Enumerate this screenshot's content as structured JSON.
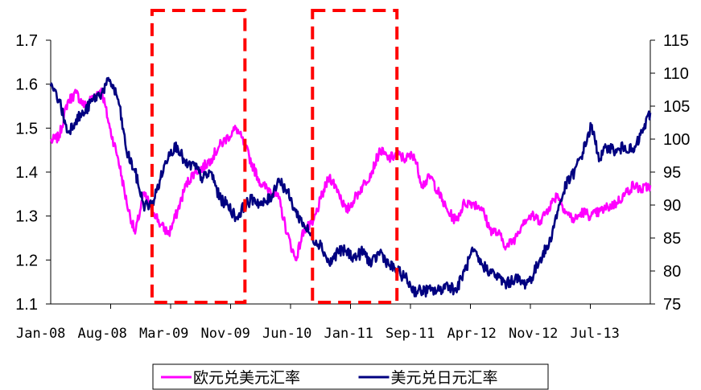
{
  "chart_data": {
    "type": "line",
    "title": "",
    "xlabel": "",
    "ylabel_left": "",
    "ylabel_right": "",
    "y_left": {
      "min": 1.1,
      "max": 1.7,
      "ticks": [
        "1.1",
        "1.2",
        "1.3",
        "1.4",
        "1.5",
        "1.6",
        "1.7"
      ]
    },
    "y_right": {
      "min": 75,
      "max": 115,
      "ticks": [
        "75",
        "80",
        "85",
        "90",
        "95",
        "100",
        "105",
        "110",
        "115"
      ]
    },
    "x_range": [
      "2008-01",
      "2013-12"
    ],
    "categories": [
      "Jan-08",
      "Aug-08",
      "Mar-09",
      "Nov-09",
      "Jun-10",
      "Jan-11",
      "Sep-11",
      "Apr-12",
      "Nov-12",
      "Jul-13"
    ],
    "grid": false,
    "legend": {
      "position": "bottom-center"
    },
    "series": [
      {
        "name": "欧元兑美元汇率",
        "axis": "left",
        "color": "#ff00ff",
        "points": [
          [
            "2008-01",
            1.47
          ],
          [
            "2008-02",
            1.48
          ],
          [
            "2008-03",
            1.56
          ],
          [
            "2008-04",
            1.58
          ],
          [
            "2008-05",
            1.55
          ],
          [
            "2008-06",
            1.57
          ],
          [
            "2008-07",
            1.59
          ],
          [
            "2008-08",
            1.5
          ],
          [
            "2008-09",
            1.43
          ],
          [
            "2008-10",
            1.33
          ],
          [
            "2008-11",
            1.26
          ],
          [
            "2008-12",
            1.35
          ],
          [
            "2009-01",
            1.32
          ],
          [
            "2009-02",
            1.28
          ],
          [
            "2009-03",
            1.26
          ],
          [
            "2009-04",
            1.31
          ],
          [
            "2009-05",
            1.37
          ],
          [
            "2009-06",
            1.4
          ],
          [
            "2009-07",
            1.41
          ],
          [
            "2009-08",
            1.43
          ],
          [
            "2009-09",
            1.46
          ],
          [
            "2009-10",
            1.48
          ],
          [
            "2009-11",
            1.5
          ],
          [
            "2009-12",
            1.46
          ],
          [
            "2010-01",
            1.41
          ],
          [
            "2010-02",
            1.37
          ],
          [
            "2010-03",
            1.36
          ],
          [
            "2010-04",
            1.34
          ],
          [
            "2010-05",
            1.26
          ],
          [
            "2010-06",
            1.2
          ],
          [
            "2010-07",
            1.27
          ],
          [
            "2010-08",
            1.28
          ],
          [
            "2010-09",
            1.34
          ],
          [
            "2010-10",
            1.39
          ],
          [
            "2010-11",
            1.36
          ],
          [
            "2010-12",
            1.31
          ],
          [
            "2011-01",
            1.34
          ],
          [
            "2011-02",
            1.37
          ],
          [
            "2011-03",
            1.4
          ],
          [
            "2011-04",
            1.45
          ],
          [
            "2011-05",
            1.43
          ],
          [
            "2011-06",
            1.44
          ],
          [
            "2011-07",
            1.43
          ],
          [
            "2011-08",
            1.44
          ],
          [
            "2011-09",
            1.37
          ],
          [
            "2011-10",
            1.39
          ],
          [
            "2011-11",
            1.35
          ],
          [
            "2011-12",
            1.31
          ],
          [
            "2012-01",
            1.29
          ],
          [
            "2012-02",
            1.33
          ],
          [
            "2012-03",
            1.33
          ],
          [
            "2012-04",
            1.32
          ],
          [
            "2012-05",
            1.27
          ],
          [
            "2012-06",
            1.26
          ],
          [
            "2012-07",
            1.23
          ],
          [
            "2012-08",
            1.25
          ],
          [
            "2012-09",
            1.29
          ],
          [
            "2012-10",
            1.3
          ],
          [
            "2012-11",
            1.29
          ],
          [
            "2012-12",
            1.32
          ],
          [
            "2013-01",
            1.35
          ],
          [
            "2013-02",
            1.31
          ],
          [
            "2013-03",
            1.29
          ],
          [
            "2013-04",
            1.31
          ],
          [
            "2013-05",
            1.3
          ],
          [
            "2013-06",
            1.31
          ],
          [
            "2013-07",
            1.32
          ],
          [
            "2013-08",
            1.33
          ],
          [
            "2013-09",
            1.35
          ],
          [
            "2013-10",
            1.37
          ],
          [
            "2013-11",
            1.36
          ],
          [
            "2013-12",
            1.37
          ]
        ]
      },
      {
        "name": "美元兑日元汇率",
        "axis": "right",
        "color": "#000080",
        "points": [
          [
            "2008-01",
            108
          ],
          [
            "2008-02",
            106
          ],
          [
            "2008-03",
            101
          ],
          [
            "2008-04",
            103
          ],
          [
            "2008-05",
            104
          ],
          [
            "2008-06",
            106
          ],
          [
            "2008-07",
            107
          ],
          [
            "2008-08",
            109
          ],
          [
            "2008-09",
            106
          ],
          [
            "2008-10",
            98
          ],
          [
            "2008-11",
            95
          ],
          [
            "2008-12",
            90
          ],
          [
            "2009-01",
            90
          ],
          [
            "2009-02",
            94
          ],
          [
            "2009-03",
            98
          ],
          [
            "2009-04",
            99
          ],
          [
            "2009-05",
            96
          ],
          [
            "2009-06",
            96
          ],
          [
            "2009-07",
            94
          ],
          [
            "2009-08",
            95
          ],
          [
            "2009-09",
            91
          ],
          [
            "2009-10",
            90
          ],
          [
            "2009-11",
            88
          ],
          [
            "2009-12",
            90
          ],
          [
            "2010-01",
            91
          ],
          [
            "2010-02",
            90
          ],
          [
            "2010-03",
            91
          ],
          [
            "2010-04",
            94
          ],
          [
            "2010-05",
            92
          ],
          [
            "2010-06",
            89
          ],
          [
            "2010-07",
            87
          ],
          [
            "2010-08",
            85
          ],
          [
            "2010-09",
            84
          ],
          [
            "2010-10",
            81
          ],
          [
            "2010-11",
            83
          ],
          [
            "2010-12",
            83
          ],
          [
            "2011-01",
            82
          ],
          [
            "2011-02",
            83
          ],
          [
            "2011-03",
            81
          ],
          [
            "2011-04",
            83
          ],
          [
            "2011-05",
            81
          ],
          [
            "2011-06",
            80
          ],
          [
            "2011-07",
            79
          ],
          [
            "2011-08",
            77
          ],
          [
            "2011-09",
            77
          ],
          [
            "2011-10",
            77
          ],
          [
            "2011-11",
            77
          ],
          [
            "2011-12",
            78
          ],
          [
            "2012-01",
            77
          ],
          [
            "2012-02",
            80
          ],
          [
            "2012-03",
            83
          ],
          [
            "2012-04",
            81
          ],
          [
            "2012-05",
            80
          ],
          [
            "2012-06",
            79
          ],
          [
            "2012-07",
            78
          ],
          [
            "2012-08",
            79
          ],
          [
            "2012-09",
            78
          ],
          [
            "2012-10",
            79
          ],
          [
            "2012-11",
            82
          ],
          [
            "2012-12",
            84
          ],
          [
            "2013-01",
            89
          ],
          [
            "2013-02",
            93
          ],
          [
            "2013-03",
            95
          ],
          [
            "2013-04",
            98
          ],
          [
            "2013-05",
            102
          ],
          [
            "2013-06",
            97
          ],
          [
            "2013-07",
            99
          ],
          [
            "2013-08",
            98
          ],
          [
            "2013-09",
            99
          ],
          [
            "2013-10",
            98
          ],
          [
            "2013-11",
            101
          ],
          [
            "2013-12",
            104
          ]
        ]
      }
    ],
    "annotations": [
      {
        "type": "dashed-rect",
        "color": "#ff0000",
        "x_start": "2009-01",
        "x_end": "2009-12"
      },
      {
        "type": "dashed-rect",
        "color": "#ff0000",
        "x_start": "2010-08",
        "x_end": "2011-06"
      }
    ]
  }
}
